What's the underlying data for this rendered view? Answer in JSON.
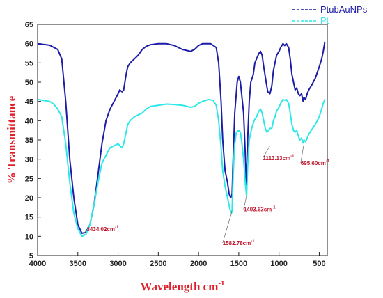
{
  "chart_data": {
    "type": "line",
    "xlabel": "Wavelength cm",
    "xlabel_sup": "-1",
    "ylabel": "% Transmittance",
    "xlim": [
      4000,
      400
    ],
    "ylim": [
      5,
      65
    ],
    "x_ticks": [
      4000,
      3500,
      3000,
      2500,
      2000,
      1500,
      1000,
      500
    ],
    "y_ticks": [
      5,
      10,
      15,
      20,
      25,
      30,
      35,
      40,
      45,
      50,
      55,
      60,
      65
    ],
    "legend_position": "top-right",
    "grid": false,
    "series": [
      {
        "name": "PtubAuNPs",
        "color": "#1c1ca8",
        "points": [
          [
            4000,
            60
          ],
          [
            3850,
            59.6
          ],
          [
            3750,
            58.5
          ],
          [
            3700,
            56
          ],
          [
            3650,
            45
          ],
          [
            3600,
            30
          ],
          [
            3550,
            20
          ],
          [
            3500,
            13
          ],
          [
            3450,
            10.8
          ],
          [
            3400,
            11
          ],
          [
            3350,
            13
          ],
          [
            3300,
            18
          ],
          [
            3250,
            26
          ],
          [
            3200,
            34
          ],
          [
            3150,
            40
          ],
          [
            3100,
            43
          ],
          [
            3050,
            45
          ],
          [
            3000,
            47
          ],
          [
            2980,
            48
          ],
          [
            2950,
            47.5
          ],
          [
            2930,
            48
          ],
          [
            2900,
            52
          ],
          [
            2880,
            54
          ],
          [
            2850,
            55
          ],
          [
            2800,
            56
          ],
          [
            2750,
            57
          ],
          [
            2700,
            58.5
          ],
          [
            2650,
            59.3
          ],
          [
            2600,
            59.7
          ],
          [
            2500,
            60
          ],
          [
            2400,
            60
          ],
          [
            2300,
            59.5
          ],
          [
            2200,
            58.5
          ],
          [
            2100,
            58
          ],
          [
            2050,
            58.5
          ],
          [
            2000,
            59.5
          ],
          [
            1950,
            60
          ],
          [
            1850,
            60
          ],
          [
            1780,
            59
          ],
          [
            1750,
            55
          ],
          [
            1720,
            45
          ],
          [
            1700,
            35
          ],
          [
            1670,
            27
          ],
          [
            1640,
            24
          ],
          [
            1620,
            21
          ],
          [
            1600,
            20
          ],
          [
            1583,
            21
          ],
          [
            1570,
            30
          ],
          [
            1550,
            42
          ],
          [
            1520,
            50
          ],
          [
            1500,
            51.5
          ],
          [
            1480,
            50
          ],
          [
            1460,
            46
          ],
          [
            1440,
            42
          ],
          [
            1420,
            32
          ],
          [
            1403,
            22
          ],
          [
            1390,
            35
          ],
          [
            1370,
            45
          ],
          [
            1350,
            50
          ],
          [
            1320,
            52
          ],
          [
            1300,
            55
          ],
          [
            1280,
            56
          ],
          [
            1250,
            57.5
          ],
          [
            1230,
            58
          ],
          [
            1210,
            57
          ],
          [
            1190,
            54
          ],
          [
            1160,
            50
          ],
          [
            1140,
            47.5
          ],
          [
            1113,
            47
          ],
          [
            1090,
            49
          ],
          [
            1070,
            53
          ],
          [
            1050,
            55
          ],
          [
            1030,
            57
          ],
          [
            1000,
            58
          ],
          [
            980,
            59
          ],
          [
            950,
            60
          ],
          [
            930,
            59.5
          ],
          [
            910,
            60
          ],
          [
            880,
            59
          ],
          [
            860,
            56
          ],
          [
            840,
            52
          ],
          [
            820,
            50
          ],
          [
            800,
            48
          ],
          [
            780,
            48.5
          ],
          [
            760,
            47
          ],
          [
            740,
            46.5
          ],
          [
            720,
            47
          ],
          [
            700,
            45
          ],
          [
            690,
            46
          ],
          [
            670,
            45.5
          ],
          [
            650,
            47
          ],
          [
            630,
            48
          ],
          [
            600,
            49
          ],
          [
            550,
            51
          ],
          [
            500,
            54
          ],
          [
            470,
            56
          ],
          [
            450,
            58
          ],
          [
            430,
            60.5
          ]
        ]
      },
      {
        "name": "Pt",
        "color": "#2ee8e8",
        "points": [
          [
            4000,
            45.5
          ],
          [
            3850,
            45
          ],
          [
            3800,
            44.3
          ],
          [
            3750,
            43
          ],
          [
            3700,
            41
          ],
          [
            3650,
            34
          ],
          [
            3600,
            24
          ],
          [
            3550,
            16
          ],
          [
            3500,
            12
          ],
          [
            3450,
            10
          ],
          [
            3400,
            10.5
          ],
          [
            3350,
            13
          ],
          [
            3300,
            18
          ],
          [
            3250,
            24
          ],
          [
            3200,
            29
          ],
          [
            3150,
            31
          ],
          [
            3100,
            33
          ],
          [
            3050,
            33.5
          ],
          [
            3000,
            34
          ],
          [
            2980,
            33.5
          ],
          [
            2950,
            33
          ],
          [
            2930,
            34
          ],
          [
            2900,
            37
          ],
          [
            2880,
            39
          ],
          [
            2850,
            40
          ],
          [
            2800,
            41
          ],
          [
            2750,
            41.5
          ],
          [
            2700,
            42
          ],
          [
            2650,
            43
          ],
          [
            2600,
            43.7
          ],
          [
            2500,
            44
          ],
          [
            2400,
            44.3
          ],
          [
            2300,
            44.2
          ],
          [
            2200,
            44
          ],
          [
            2100,
            43.5
          ],
          [
            2050,
            43.7
          ],
          [
            2000,
            44.5
          ],
          [
            1950,
            45
          ],
          [
            1880,
            45.5
          ],
          [
            1820,
            45.3
          ],
          [
            1780,
            44
          ],
          [
            1750,
            40
          ],
          [
            1720,
            33
          ],
          [
            1700,
            27
          ],
          [
            1670,
            23
          ],
          [
            1640,
            20
          ],
          [
            1610,
            17
          ],
          [
            1590,
            16
          ],
          [
            1583,
            17
          ],
          [
            1570,
            26
          ],
          [
            1550,
            34
          ],
          [
            1530,
            37
          ],
          [
            1500,
            37.5
          ],
          [
            1480,
            37
          ],
          [
            1460,
            34
          ],
          [
            1440,
            30
          ],
          [
            1420,
            24
          ],
          [
            1403,
            20.5
          ],
          [
            1390,
            28
          ],
          [
            1370,
            35
          ],
          [
            1340,
            38
          ],
          [
            1310,
            40
          ],
          [
            1280,
            41
          ],
          [
            1250,
            42.5
          ],
          [
            1230,
            43
          ],
          [
            1210,
            42
          ],
          [
            1190,
            40
          ],
          [
            1170,
            38
          ],
          [
            1150,
            37
          ],
          [
            1130,
            37.5
          ],
          [
            1113,
            38
          ],
          [
            1090,
            38
          ],
          [
            1070,
            40
          ],
          [
            1050,
            41
          ],
          [
            1030,
            42.5
          ],
          [
            1000,
            43.5
          ],
          [
            980,
            44.5
          ],
          [
            950,
            45.5
          ],
          [
            930,
            45.3
          ],
          [
            910,
            45.5
          ],
          [
            880,
            44.5
          ],
          [
            860,
            42
          ],
          [
            840,
            39
          ],
          [
            820,
            37.5
          ],
          [
            800,
            37
          ],
          [
            780,
            37.5
          ],
          [
            760,
            36
          ],
          [
            740,
            35
          ],
          [
            720,
            35.5
          ],
          [
            700,
            34.2
          ],
          [
            690,
            35
          ],
          [
            670,
            34.5
          ],
          [
            650,
            35.5
          ],
          [
            630,
            36.5
          ],
          [
            600,
            37.5
          ],
          [
            550,
            39
          ],
          [
            500,
            41
          ],
          [
            470,
            43
          ],
          [
            450,
            44.5
          ],
          [
            430,
            45.5
          ]
        ]
      }
    ],
    "annotations": [
      {
        "label": "3434.02cm",
        "sup": "-1",
        "x": 3434,
        "y": 10.3,
        "text_x": 3390,
        "text_y": 11.3,
        "anchor": "start"
      },
      {
        "label": "1582.78cm",
        "sup": "-1",
        "x": 1585,
        "y": 16.5,
        "text_x": 1700,
        "text_y": 7.7,
        "anchor": "start"
      },
      {
        "label": "1403.63cm",
        "sup": "-1",
        "x": 1403,
        "y": 20.5,
        "text_x": 1440,
        "text_y": 16.5,
        "anchor": "start"
      },
      {
        "label": "1113.13cm",
        "sup": "-1",
        "x": 1113,
        "y": 33.5,
        "text_x": 1200,
        "text_y": 29.8,
        "anchor": "start"
      },
      {
        "label": "695.60cm",
        "sup": "-1",
        "x": 695,
        "y": 33.5,
        "text_x": 730,
        "text_y": 28.5,
        "anchor": "start"
      }
    ]
  }
}
